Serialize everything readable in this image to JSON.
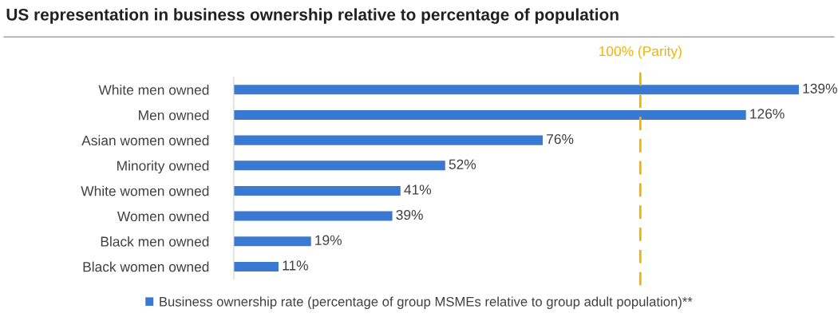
{
  "chart_data": {
    "type": "bar",
    "orientation": "horizontal",
    "title": "US representation in business ownership relative to percentage of population",
    "categories": [
      "White men owned",
      "Men owned",
      "Asian women owned",
      "Minority owned",
      "White women owned",
      "Women owned",
      "Black men owned",
      "Black women owned"
    ],
    "series": [
      {
        "name": "Business ownership rate (percentage of group MSMEs relative to group adult population)**",
        "color": "#3a78d2",
        "values": [
          139,
          126,
          76,
          52,
          41,
          39,
          19,
          11
        ],
        "value_labels": [
          "139%",
          "126%",
          "76%",
          "52%",
          "41%",
          "39%",
          "19%",
          "11%"
        ]
      }
    ],
    "ref_lines": [
      {
        "axis": "x",
        "value": 100,
        "label": "100% (Parity)",
        "color": "#f0b400",
        "line_style": "dashed"
      }
    ],
    "legend": "bottom",
    "grid": false
  }
}
